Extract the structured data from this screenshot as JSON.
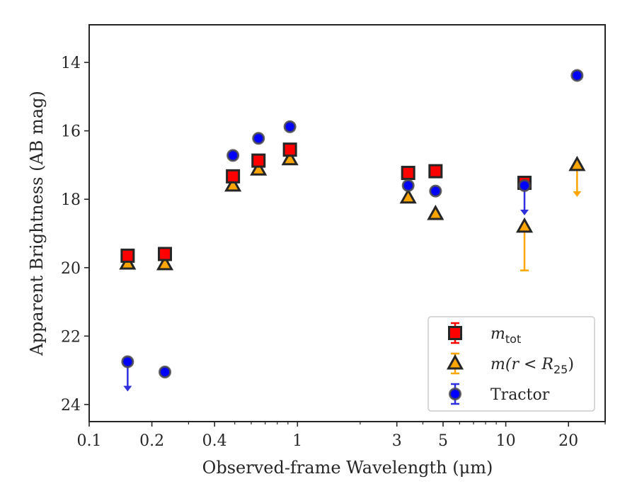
{
  "chart_data": {
    "type": "scatter",
    "xlabel": "Observed-frame Wavelength (μm)",
    "ylabel": "Apparent Brightness (AB mag)",
    "xscale": "log",
    "xlim": [
      0.1,
      30
    ],
    "ylim": [
      24.5,
      12.9
    ],
    "y_inverted": true,
    "xticks": [
      {
        "value": 0.1,
        "label": "0.1"
      },
      {
        "value": 0.2,
        "label": "0.2"
      },
      {
        "value": 0.4,
        "label": "0.4"
      },
      {
        "value": 1,
        "label": "1"
      },
      {
        "value": 3,
        "label": "3"
      },
      {
        "value": 5,
        "label": "5"
      },
      {
        "value": 10,
        "label": "10"
      },
      {
        "value": 20,
        "label": "20"
      }
    ],
    "xminor": [
      0.3,
      0.5,
      0.6,
      0.7,
      0.8,
      0.9,
      2,
      4,
      6,
      7,
      8,
      9,
      30
    ],
    "yticks": [
      {
        "value": 14,
        "label": "14"
      },
      {
        "value": 16,
        "label": "16"
      },
      {
        "value": 18,
        "label": "18"
      },
      {
        "value": 20,
        "label": "20"
      },
      {
        "value": 22,
        "label": "22"
      },
      {
        "value": 24,
        "label": "24"
      }
    ],
    "grid": false,
    "legend_position": "lower-right",
    "series": [
      {
        "key": "mtot",
        "marker": "square",
        "color": "#ff0000",
        "edge": "#262626",
        "points": [
          {
            "x": 0.153,
            "y": 19.65
          },
          {
            "x": 0.231,
            "y": 19.6
          },
          {
            "x": 0.49,
            "y": 17.33
          },
          {
            "x": 0.65,
            "y": 16.87
          },
          {
            "x": 0.92,
            "y": 16.55
          },
          {
            "x": 3.4,
            "y": 17.23
          },
          {
            "x": 4.6,
            "y": 17.18
          },
          {
            "x": 12.3,
            "y": 17.52
          }
        ]
      },
      {
        "key": "mr25",
        "marker": "triangle",
        "color": "#ffa500",
        "edge": "#262626",
        "points": [
          {
            "x": 0.153,
            "y": 19.88
          },
          {
            "x": 0.231,
            "y": 19.9
          },
          {
            "x": 0.49,
            "y": 17.6
          },
          {
            "x": 0.65,
            "y": 17.13
          },
          {
            "x": 0.92,
            "y": 16.83
          },
          {
            "x": 3.4,
            "y": 17.95
          },
          {
            "x": 4.6,
            "y": 18.43
          },
          {
            "x": 12.3,
            "y": 18.8,
            "err_faint": 20.08
          },
          {
            "x": 22,
            "y": 17.0,
            "upper_limit": true
          }
        ]
      },
      {
        "key": "tractor",
        "marker": "circle",
        "color": "#0000ff",
        "edge": "#262626",
        "points": [
          {
            "x": 0.153,
            "y": 22.75,
            "upper_limit": true
          },
          {
            "x": 0.231,
            "y": 23.05
          },
          {
            "x": 0.49,
            "y": 16.72
          },
          {
            "x": 0.65,
            "y": 16.22
          },
          {
            "x": 0.92,
            "y": 15.88
          },
          {
            "x": 3.4,
            "y": 17.6
          },
          {
            "x": 4.6,
            "y": 17.76
          },
          {
            "x": 12.3,
            "y": 17.6,
            "upper_limit": true
          },
          {
            "x": 22,
            "y": 14.38
          }
        ]
      }
    ],
    "legend": [
      {
        "series": "mtot",
        "math": "m",
        "sub": "tot",
        "suffix": ""
      },
      {
        "series": "mr25",
        "math": "m(r < R",
        "sub": "25",
        "suffix": ")"
      },
      {
        "series": "tractor",
        "text": "Tractor"
      }
    ]
  }
}
